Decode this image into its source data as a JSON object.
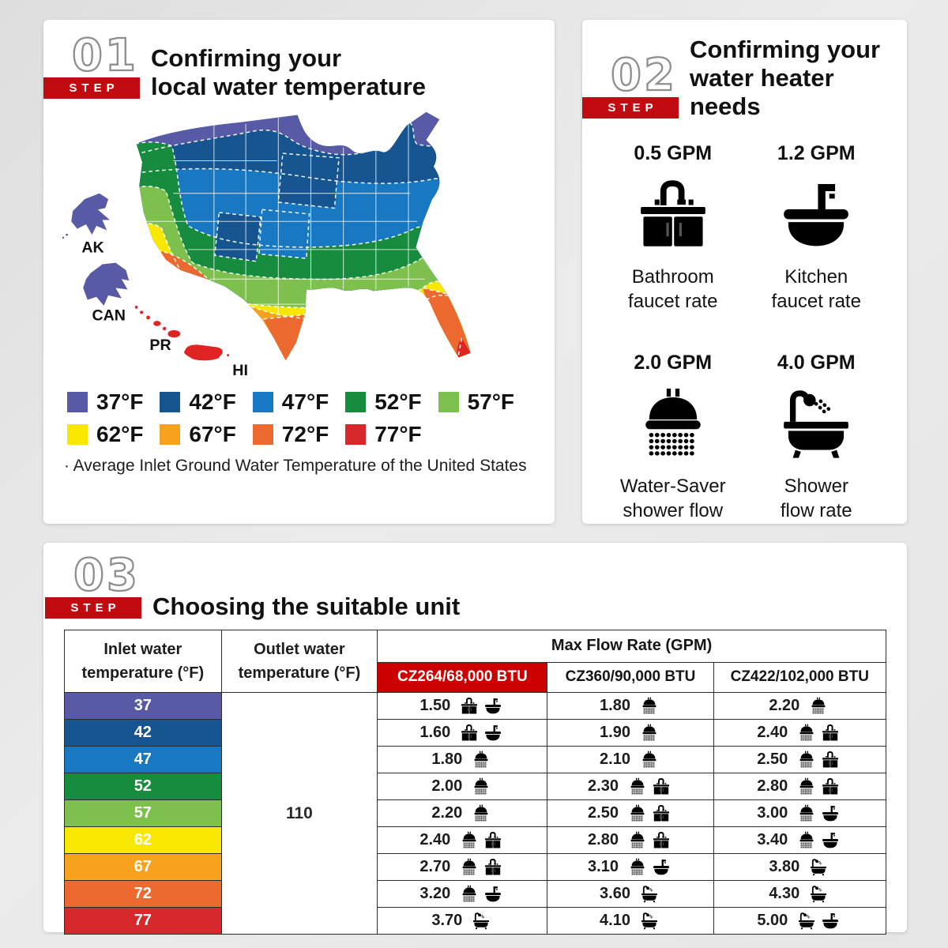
{
  "colors": {
    "accent_red": "#c20a11",
    "model_red": "#cc0000"
  },
  "step1": {
    "number": "01",
    "step_label": "STEP",
    "title_line1": "Confirming your",
    "title_line2": "local water temperature",
    "map_labels": {
      "ak": "AK",
      "can": "CAN",
      "pr": "PR",
      "hi": "HI"
    },
    "legend": [
      {
        "temp": "37°F",
        "color": "#585aa6"
      },
      {
        "temp": "42°F",
        "color": "#175591"
      },
      {
        "temp": "47°F",
        "color": "#1878c2"
      },
      {
        "temp": "52°F",
        "color": "#178c3e"
      },
      {
        "temp": "57°F",
        "color": "#7ec04e"
      },
      {
        "temp": "62°F",
        "color": "#f8e800"
      },
      {
        "temp": "67°F",
        "color": "#f6a21f"
      },
      {
        "temp": "72°F",
        "color": "#ec6a30"
      },
      {
        "temp": "77°F",
        "color": "#d7282b"
      }
    ],
    "footnote": "· Average Inlet Ground Water Temperature of the United States"
  },
  "step2": {
    "number": "02",
    "step_label": "STEP",
    "title_line1": "Confirming your",
    "title_line2": "water heater needs",
    "items": [
      {
        "gpm": "0.5 GPM",
        "icon": "bathroom-faucet",
        "caption": "Bathroom\nfaucet rate"
      },
      {
        "gpm": "1.2 GPM",
        "icon": "kitchen-faucet",
        "caption": "Kitchen\nfaucet rate"
      },
      {
        "gpm": "2.0 GPM",
        "icon": "shower-head",
        "caption": "Water-Saver\nshower flow"
      },
      {
        "gpm": "4.0 GPM",
        "icon": "bathtub",
        "caption": "Shower\nflow rate"
      }
    ]
  },
  "step3": {
    "number": "03",
    "step_label": "STEP",
    "title": "Choosing the suitable unit",
    "table": {
      "col1_header": "Inlet water\ntemperature (°F)",
      "col2_header": "Outlet water\ntemperature (°F)",
      "flow_header": "Max Flow Rate (GPM)",
      "models": [
        {
          "label": "CZ264/68,000 BTU",
          "highlight": true
        },
        {
          "label": "CZ360/90,000 BTU",
          "highlight": false
        },
        {
          "label": "CZ422/102,000 BTU",
          "highlight": false
        }
      ],
      "outlet_value": "110",
      "rows": [
        {
          "inlet": "37",
          "color": "#585aa6",
          "values": [
            {
              "v": "1.50",
              "icons": [
                "bathroom-faucet",
                "kitchen-faucet"
              ]
            },
            {
              "v": "1.80",
              "icons": [
                "shower-head"
              ]
            },
            {
              "v": "2.20",
              "icons": [
                "shower-head"
              ]
            }
          ]
        },
        {
          "inlet": "42",
          "color": "#175591",
          "values": [
            {
              "v": "1.60",
              "icons": [
                "bathroom-faucet",
                "kitchen-faucet"
              ]
            },
            {
              "v": "1.90",
              "icons": [
                "shower-head"
              ]
            },
            {
              "v": "2.40",
              "icons": [
                "shower-head",
                "bathroom-faucet"
              ]
            }
          ]
        },
        {
          "inlet": "47",
          "color": "#1878c2",
          "values": [
            {
              "v": "1.80",
              "icons": [
                "shower-head"
              ]
            },
            {
              "v": "2.10",
              "icons": [
                "shower-head"
              ]
            },
            {
              "v": "2.50",
              "icons": [
                "shower-head",
                "bathroom-faucet"
              ]
            }
          ]
        },
        {
          "inlet": "52",
          "color": "#178c3e",
          "values": [
            {
              "v": "2.00",
              "icons": [
                "shower-head"
              ]
            },
            {
              "v": "2.30",
              "icons": [
                "shower-head",
                "bathroom-faucet"
              ]
            },
            {
              "v": "2.80",
              "icons": [
                "shower-head",
                "bathroom-faucet"
              ]
            }
          ]
        },
        {
          "inlet": "57",
          "color": "#7ec04e",
          "values": [
            {
              "v": "2.20",
              "icons": [
                "shower-head"
              ]
            },
            {
              "v": "2.50",
              "icons": [
                "shower-head",
                "bathroom-faucet"
              ]
            },
            {
              "v": "3.00",
              "icons": [
                "shower-head",
                "kitchen-faucet"
              ]
            }
          ]
        },
        {
          "inlet": "62",
          "color": "#f8e800",
          "values": [
            {
              "v": "2.40",
              "icons": [
                "shower-head",
                "bathroom-faucet"
              ]
            },
            {
              "v": "2.80",
              "icons": [
                "shower-head",
                "bathroom-faucet"
              ]
            },
            {
              "v": "3.40",
              "icons": [
                "shower-head",
                "kitchen-faucet"
              ]
            }
          ]
        },
        {
          "inlet": "67",
          "color": "#f6a21f",
          "values": [
            {
              "v": "2.70",
              "icons": [
                "shower-head",
                "bathroom-faucet"
              ]
            },
            {
              "v": "3.10",
              "icons": [
                "shower-head",
                "kitchen-faucet"
              ]
            },
            {
              "v": "3.80",
              "icons": [
                "bathtub"
              ]
            }
          ]
        },
        {
          "inlet": "72",
          "color": "#ec6a30",
          "values": [
            {
              "v": "3.20",
              "icons": [
                "shower-head",
                "kitchen-faucet"
              ]
            },
            {
              "v": "3.60",
              "icons": [
                "bathtub"
              ]
            },
            {
              "v": "4.30",
              "icons": [
                "bathtub"
              ]
            }
          ]
        },
        {
          "inlet": "77",
          "color": "#d7282b",
          "values": [
            {
              "v": "3.70",
              "icons": [
                "bathtub"
              ]
            },
            {
              "v": "4.10",
              "icons": [
                "bathtub"
              ]
            },
            {
              "v": "5.00",
              "icons": [
                "bathtub",
                "kitchen-faucet"
              ]
            }
          ]
        }
      ]
    }
  }
}
